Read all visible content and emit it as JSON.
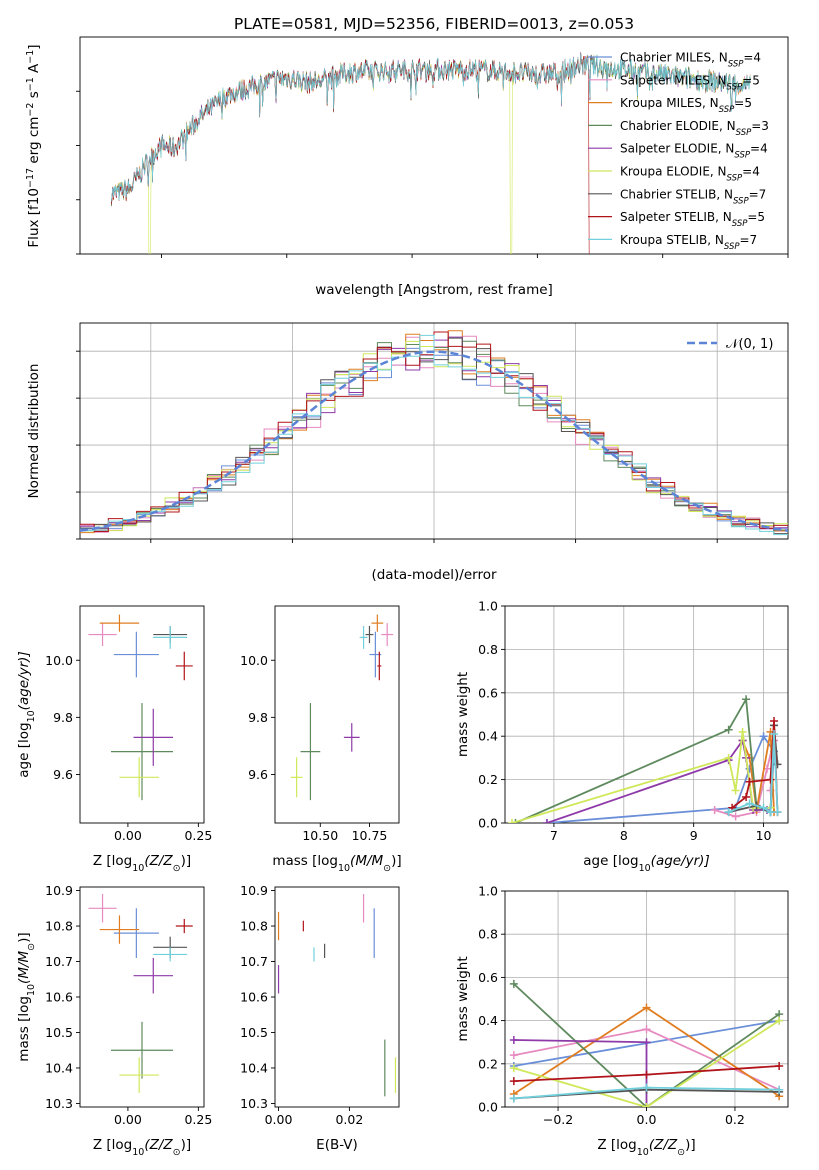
{
  "figure": {
    "title": "PLATE=0581, MJD=52356, FIBERID=0013, z=0.053"
  },
  "models": [
    {
      "key": "chabrier_miles",
      "label_main": "Chabrier MILES, N",
      "label_sub": "SSP",
      "label_end": "=4",
      "color": "#6a8fd8"
    },
    {
      "key": "salpeter_miles",
      "label_main": "Salpeter MILES, N",
      "label_sub": "SSP",
      "label_end": "=5",
      "color": "#e68ac0"
    },
    {
      "key": "kroupa_miles",
      "label_main": "Kroupa MILES, N",
      "label_sub": "SSP",
      "label_end": "=5",
      "color": "#e07d21"
    },
    {
      "key": "chabrier_elodie",
      "label_main": "Chabrier ELODIE, N",
      "label_sub": "SSP",
      "label_end": "=3",
      "color": "#5e8a5e"
    },
    {
      "key": "salpeter_elodie",
      "label_main": "Salpeter ELODIE, N",
      "label_sub": "SSP",
      "label_end": "=4",
      "color": "#8e3aa8"
    },
    {
      "key": "kroupa_elodie",
      "label_main": "Kroupa ELODIE, N",
      "label_sub": "SSP",
      "label_end": "=4",
      "color": "#cfe85a"
    },
    {
      "key": "chabrier_stelib",
      "label_main": "Chabrier STELIB, N",
      "label_sub": "SSP",
      "label_end": "=7",
      "color": "#555555"
    },
    {
      "key": "salpeter_stelib",
      "label_main": "Salpeter STELIB, N",
      "label_sub": "SSP",
      "label_end": "=5",
      "color": "#b0141a"
    },
    {
      "key": "kroupa_stelib",
      "label_main": "Kroupa STELIB, N",
      "label_sub": "SSP",
      "label_end": "=7",
      "color": "#72d0dc"
    }
  ],
  "chart_data": [
    {
      "id": "spectrum",
      "type": "line",
      "xlabel": "wavelength [Angstrom, rest frame]",
      "ylabel_main": "Flux [f",
      "ylabel_rest": "10",
      "ylabel_exp": "−17",
      "ylabel_units": " erg cm",
      "ylabel_exp2": "−2",
      "ylabel_s": " s",
      "ylabel_exp3": "−1",
      "ylabel_a": " A",
      "ylabel_exp4": "−1",
      "ylabel_close": "]",
      "xlim": [
        3350,
        9000
      ],
      "ylim": [
        0,
        80
      ],
      "xticks": [
        4000,
        5000,
        6000,
        7000,
        8000,
        9000
      ],
      "yticks": [
        0,
        20,
        40,
        60
      ],
      "continuum_knots": [
        [
          3600,
          22
        ],
        [
          3750,
          24
        ],
        [
          3900,
          35
        ],
        [
          4000,
          40
        ],
        [
          4100,
          39
        ],
        [
          4300,
          50
        ],
        [
          4500,
          58
        ],
        [
          4800,
          63
        ],
        [
          5000,
          65
        ],
        [
          5200,
          63
        ],
        [
          5500,
          67
        ],
        [
          6000,
          68
        ],
        [
          6500,
          68
        ],
        [
          6800,
          67
        ],
        [
          7000,
          66
        ],
        [
          7200,
          67
        ],
        [
          7350,
          70
        ],
        [
          7500,
          69
        ],
        [
          8000,
          66
        ],
        [
          8500,
          63
        ],
        [
          8700,
          62
        ]
      ],
      "range": [
        3600,
        8700
      ],
      "grid": false,
      "legend": "right"
    },
    {
      "id": "residuals",
      "type": "area",
      "xlabel": "(data-model)/error",
      "ylabel": "Normed distribution",
      "xlim": [
        -2.5,
        2.5
      ],
      "ylim": [
        0,
        0.46
      ],
      "xticks": [
        -2,
        -1,
        0,
        1,
        2
      ],
      "yticks": [
        0.0,
        0.1,
        0.2,
        0.3,
        0.4
      ],
      "bin_width": 0.1,
      "normal_label": "𝒩(0, 1)",
      "normal_color": "#5b84d6",
      "grid": true,
      "legend": "top-right"
    },
    {
      "id": "z_age",
      "type": "scatter",
      "xlabel": "Z [log",
      "xlabel_sub": "10",
      "xlabel_rest": "(Z/Z",
      "xlabel_sun": "⊙",
      "xlabel_close": ")]",
      "ylabel": "age  [log",
      "ylabel_sub": "10",
      "ylabel_rest": "(age/yr)]",
      "xlim": [
        -0.17,
        0.27
      ],
      "ylim": [
        9.43,
        10.19
      ],
      "xticks": [
        0.0,
        0.25
      ],
      "yticks": [
        9.6,
        9.8,
        10.0
      ],
      "points": [
        {
          "model": "chabrier_miles",
          "x": 0.03,
          "y": 10.02,
          "ex": 0.08,
          "ey": 0.08
        },
        {
          "model": "salpeter_miles",
          "x": -0.09,
          "y": 10.09,
          "ex": 0.05,
          "ey": 0.04
        },
        {
          "model": "kroupa_miles",
          "x": -0.03,
          "y": 10.13,
          "ex": 0.07,
          "ey": 0.03
        },
        {
          "model": "chabrier_elodie",
          "x": 0.05,
          "y": 9.68,
          "ex": 0.11,
          "ey": 0.17
        },
        {
          "model": "salpeter_elodie",
          "x": 0.09,
          "y": 9.73,
          "ex": 0.07,
          "ey": 0.1
        },
        {
          "model": "kroupa_elodie",
          "x": 0.04,
          "y": 9.59,
          "ex": 0.07,
          "ey": 0.07
        },
        {
          "model": "chabrier_stelib",
          "x": 0.15,
          "y": 10.09,
          "ex": 0.06,
          "ey": 0.03
        },
        {
          "model": "salpeter_stelib",
          "x": 0.2,
          "y": 9.98,
          "ex": 0.03,
          "ey": 0.05
        },
        {
          "model": "kroupa_stelib",
          "x": 0.15,
          "y": 10.08,
          "ex": 0.06,
          "ey": 0.04
        }
      ]
    },
    {
      "id": "mass_age",
      "type": "scatter",
      "xlabel": "mass [log",
      "xlabel_sub": "10",
      "xlabel_rest": "(M/M",
      "xlabel_sun": "⊙",
      "xlabel_close": ")]",
      "xlim": [
        10.27,
        10.9
      ],
      "ylim": [
        9.43,
        10.19
      ],
      "xticks": [
        10.5,
        10.75
      ],
      "yticks": [
        9.6,
        9.8,
        10.0
      ],
      "points": [
        {
          "model": "chabrier_miles",
          "x": 10.78,
          "y": 10.02,
          "ex": 0.03,
          "ey": 0.08
        },
        {
          "model": "salpeter_miles",
          "x": 10.84,
          "y": 10.09,
          "ex": 0.03,
          "ey": 0.04
        },
        {
          "model": "kroupa_miles",
          "x": 10.79,
          "y": 10.13,
          "ex": 0.03,
          "ey": 0.03
        },
        {
          "model": "chabrier_elodie",
          "x": 10.45,
          "y": 9.68,
          "ex": 0.05,
          "ey": 0.17
        },
        {
          "model": "salpeter_elodie",
          "x": 10.66,
          "y": 9.73,
          "ex": 0.04,
          "ey": 0.05
        },
        {
          "model": "kroupa_elodie",
          "x": 10.38,
          "y": 9.59,
          "ex": 0.03,
          "ey": 0.07
        },
        {
          "model": "chabrier_stelib",
          "x": 10.75,
          "y": 10.09,
          "ex": 0.02,
          "ey": 0.03
        },
        {
          "model": "salpeter_stelib",
          "x": 10.8,
          "y": 9.98,
          "ex": 0.01,
          "ey": 0.05
        },
        {
          "model": "kroupa_stelib",
          "x": 10.72,
          "y": 10.08,
          "ex": 0.02,
          "ey": 0.04
        }
      ]
    },
    {
      "id": "age_weight",
      "type": "line",
      "xlabel": "age  [log",
      "xlabel_sub": "10",
      "xlabel_rest": "(age/yr)]",
      "ylabel": "mass weight",
      "xlim": [
        6.3,
        10.35
      ],
      "ylim": [
        0,
        1.0
      ],
      "xticks": [
        7,
        8,
        9,
        10
      ],
      "yticks": [
        0.0,
        0.2,
        0.4,
        0.6,
        0.8,
        1.0
      ],
      "grid": true,
      "series": [
        {
          "model": "chabrier_miles",
          "points": [
            [
              6.9,
              0.0
            ],
            [
              9.6,
              0.07
            ],
            [
              9.8,
              0.25
            ],
            [
              10.0,
              0.4
            ],
            [
              10.15,
              0.33
            ],
            [
              10.1,
              0.05
            ]
          ]
        },
        {
          "model": "salpeter_miles",
          "points": [
            [
              9.3,
              0.06
            ],
            [
              9.6,
              0.03
            ],
            [
              9.9,
              0.05
            ],
            [
              10.05,
              0.25
            ],
            [
              10.15,
              0.38
            ],
            [
              10.1,
              0.15
            ]
          ]
        },
        {
          "model": "kroupa_miles",
          "points": [
            [
              9.7,
              0.38
            ],
            [
              9.8,
              0.3
            ],
            [
              9.9,
              0.06
            ],
            [
              10.1,
              0.42
            ],
            [
              10.15,
              0.05
            ]
          ]
        },
        {
          "model": "chabrier_elodie",
          "points": [
            [
              6.45,
              0.0
            ],
            [
              9.5,
              0.43
            ],
            [
              9.75,
              0.57
            ],
            [
              9.9,
              0.07
            ],
            [
              10.1,
              0.05
            ],
            [
              10.15,
              0.45
            ]
          ]
        },
        {
          "model": "salpeter_elodie",
          "points": [
            [
              6.9,
              0.0
            ],
            [
              9.5,
              0.29
            ],
            [
              9.7,
              0.38
            ],
            [
              9.75,
              0.3
            ],
            [
              9.85,
              0.06
            ],
            [
              10.05,
              0.06
            ]
          ]
        },
        {
          "model": "kroupa_elodie",
          "points": [
            [
              6.4,
              0.0
            ],
            [
              9.5,
              0.3
            ],
            [
              9.6,
              0.15
            ],
            [
              9.7,
              0.42
            ],
            [
              9.85,
              0.07
            ],
            [
              10.1,
              0.07
            ]
          ]
        },
        {
          "model": "chabrier_stelib",
          "points": [
            [
              9.5,
              0.05
            ],
            [
              9.9,
              0.08
            ],
            [
              10.1,
              0.05
            ],
            [
              10.15,
              0.45
            ],
            [
              10.2,
              0.27
            ]
          ]
        },
        {
          "model": "salpeter_stelib",
          "points": [
            [
              9.55,
              0.07
            ],
            [
              9.75,
              0.12
            ],
            [
              9.8,
              0.19
            ],
            [
              10.1,
              0.2
            ],
            [
              10.15,
              0.47
            ],
            [
              10.2,
              0.05
            ]
          ]
        },
        {
          "model": "kroupa_stelib",
          "points": [
            [
              9.5,
              0.05
            ],
            [
              9.8,
              0.09
            ],
            [
              10.0,
              0.07
            ],
            [
              10.1,
              0.05
            ],
            [
              10.15,
              0.41
            ],
            [
              10.2,
              0.05
            ]
          ]
        }
      ]
    },
    {
      "id": "z_mass",
      "type": "scatter",
      "xlabel": "Z [log",
      "xlabel_sub": "10",
      "xlabel_rest": "(Z/Z",
      "xlabel_sun": "⊙",
      "xlabel_close": ")]",
      "ylabel": "mass [log",
      "ylabel_sub": "10",
      "ylabel_rest": "(M/M",
      "ylabel_sun": "⊙",
      "ylabel_close": ")]",
      "xlim": [
        -0.17,
        0.27
      ],
      "ylim": [
        10.29,
        10.91
      ],
      "xticks": [
        0.0,
        0.25
      ],
      "yticks": [
        10.3,
        10.4,
        10.5,
        10.6,
        10.7,
        10.8,
        10.9
      ],
      "points": [
        {
          "model": "chabrier_miles",
          "x": 0.03,
          "y": 10.78,
          "ex": 0.08,
          "ey": 0.07
        },
        {
          "model": "salpeter_miles",
          "x": -0.09,
          "y": 10.85,
          "ex": 0.05,
          "ey": 0.04
        },
        {
          "model": "kroupa_miles",
          "x": -0.03,
          "y": 10.79,
          "ex": 0.07,
          "ey": 0.04
        },
        {
          "model": "chabrier_elodie",
          "x": 0.05,
          "y": 10.45,
          "ex": 0.11,
          "ey": 0.08
        },
        {
          "model": "salpeter_elodie",
          "x": 0.09,
          "y": 10.66,
          "ex": 0.07,
          "ey": 0.05
        },
        {
          "model": "kroupa_elodie",
          "x": 0.04,
          "y": 10.38,
          "ex": 0.07,
          "ey": 0.05
        },
        {
          "model": "chabrier_stelib",
          "x": 0.15,
          "y": 10.74,
          "ex": 0.06,
          "ey": 0.03
        },
        {
          "model": "salpeter_stelib",
          "x": 0.2,
          "y": 10.8,
          "ex": 0.03,
          "ey": 0.02
        },
        {
          "model": "kroupa_stelib",
          "x": 0.15,
          "y": 10.72,
          "ex": 0.06,
          "ey": 0.02
        }
      ]
    },
    {
      "id": "ebv_mass",
      "type": "scatter",
      "xlabel": "E(B-V)",
      "xlim": [
        -0.001,
        0.034
      ],
      "ylim": [
        10.29,
        10.91
      ],
      "xticks": [
        0.0,
        0.02
      ],
      "yticks": [
        10.3,
        10.4,
        10.5,
        10.6,
        10.7,
        10.8,
        10.9
      ],
      "points": [
        {
          "model": "chabrier_miles",
          "x": 0.027,
          "y": 10.78,
          "ex": 0,
          "ey": 0.07
        },
        {
          "model": "salpeter_miles",
          "x": 0.024,
          "y": 10.85,
          "ex": 0,
          "ey": 0.04
        },
        {
          "model": "kroupa_miles",
          "x": 0.0,
          "y": 10.8,
          "ex": 0,
          "ey": 0.04
        },
        {
          "model": "chabrier_elodie",
          "x": 0.03,
          "y": 10.4,
          "ex": 0,
          "ey": 0.08
        },
        {
          "model": "salpeter_elodie",
          "x": 0.0,
          "y": 10.65,
          "ex": 0,
          "ey": 0.04
        },
        {
          "model": "kroupa_elodie",
          "x": 0.033,
          "y": 10.38,
          "ex": 0,
          "ey": 0.05
        },
        {
          "model": "chabrier_stelib",
          "x": 0.013,
          "y": 10.73,
          "ex": 0,
          "ey": 0.02
        },
        {
          "model": "salpeter_stelib",
          "x": 0.007,
          "y": 10.8,
          "ex": 0,
          "ey": 0.015
        },
        {
          "model": "kroupa_stelib",
          "x": 0.01,
          "y": 10.72,
          "ex": 0,
          "ey": 0.02
        }
      ]
    },
    {
      "id": "z_weight",
      "type": "line",
      "xlabel": "Z [log",
      "xlabel_sub": "10",
      "xlabel_rest": "(Z/Z",
      "xlabel_sun": "⊙",
      "xlabel_close": ")]",
      "ylabel": "mass weight",
      "xlim": [
        -0.32,
        0.32
      ],
      "ylim": [
        0,
        1.0
      ],
      "xticks": [
        -0.2,
        0.0,
        0.2
      ],
      "yticks": [
        0.0,
        0.2,
        0.4,
        0.6,
        0.8,
        1.0
      ],
      "grid": true,
      "series": [
        {
          "model": "chabrier_miles",
          "points": [
            [
              -0.3,
              0.19
            ],
            [
              0.3,
              0.4
            ]
          ]
        },
        {
          "model": "salpeter_miles",
          "points": [
            [
              -0.3,
              0.24
            ],
            [
              0.0,
              0.36
            ],
            [
              0.3,
              0.08
            ]
          ]
        },
        {
          "model": "kroupa_miles",
          "points": [
            [
              -0.3,
              0.06
            ],
            [
              0.0,
              0.46
            ],
            [
              0.3,
              0.05
            ]
          ]
        },
        {
          "model": "chabrier_elodie",
          "points": [
            [
              -0.3,
              0.57
            ],
            [
              0.0,
              0.0
            ],
            [
              0.3,
              0.43
            ]
          ]
        },
        {
          "model": "salpeter_elodie",
          "points": [
            [
              -0.3,
              0.31
            ],
            [
              0.0,
              0.3
            ],
            [
              0.0,
              0.0
            ]
          ]
        },
        {
          "model": "kroupa_elodie",
          "points": [
            [
              -0.3,
              0.18
            ],
            [
              0.0,
              0.0
            ],
            [
              0.3,
              0.4
            ]
          ]
        },
        {
          "model": "chabrier_stelib",
          "points": [
            [
              -0.3,
              0.04
            ],
            [
              0.0,
              0.08
            ],
            [
              0.3,
              0.07
            ]
          ]
        },
        {
          "model": "salpeter_stelib",
          "points": [
            [
              -0.3,
              0.12
            ],
            [
              0.0,
              0.15
            ],
            [
              0.3,
              0.19
            ]
          ]
        },
        {
          "model": "kroupa_stelib",
          "points": [
            [
              -0.3,
              0.04
            ],
            [
              0.0,
              0.09
            ],
            [
              0.3,
              0.08
            ]
          ]
        }
      ]
    }
  ]
}
